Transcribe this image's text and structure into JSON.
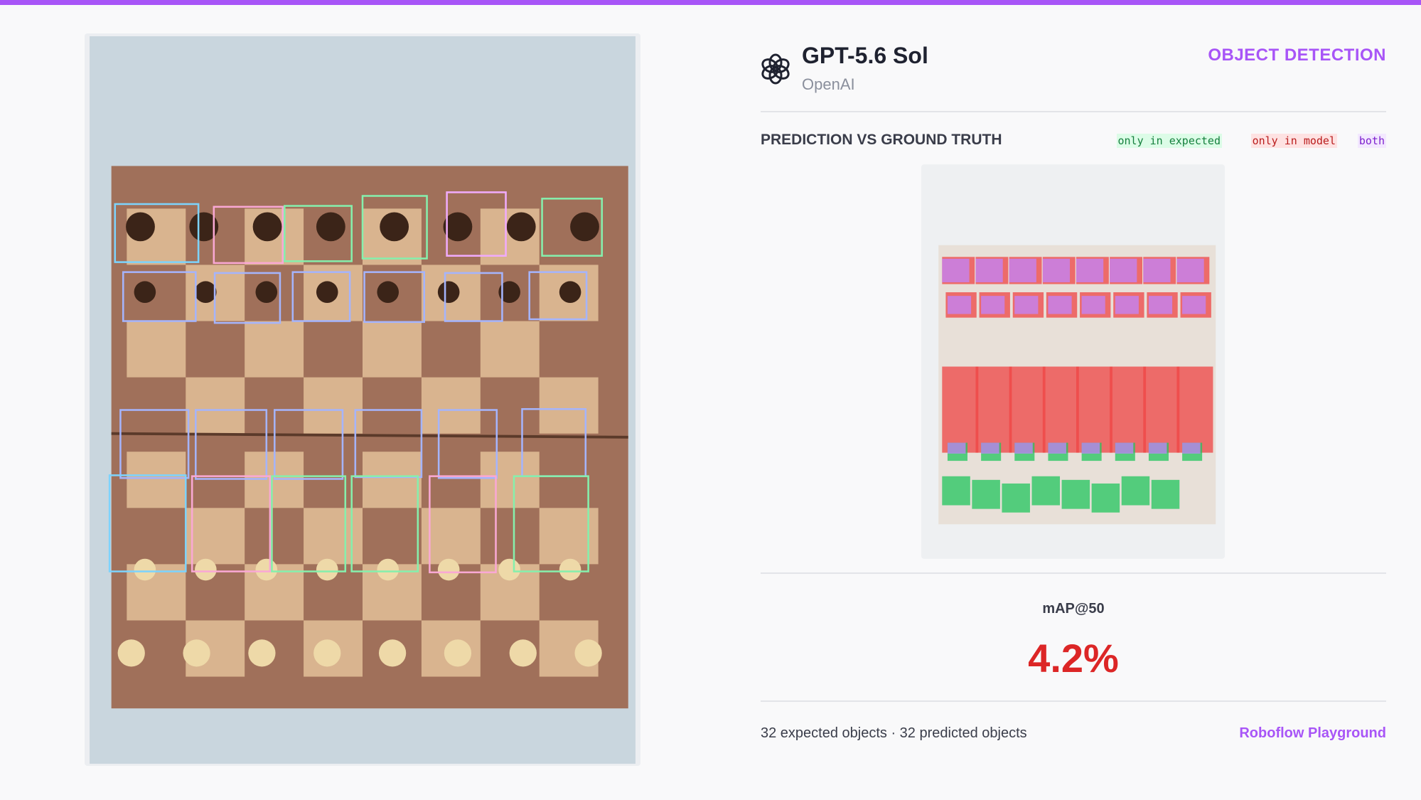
{
  "header": {
    "model": "GPT-5.6 Sol",
    "provider": "OpenAI",
    "task": "OBJECT DETECTION"
  },
  "comparison": {
    "title": "PREDICTION VS GROUND TRUTH",
    "legend": [
      "only in expected",
      "only in model",
      "both"
    ]
  },
  "metric": {
    "label": "mAP@50",
    "value": "4.2%"
  },
  "footer": {
    "summary": "32 expected objects · 32 predicted objects",
    "link": "Roboflow Playground"
  }
}
